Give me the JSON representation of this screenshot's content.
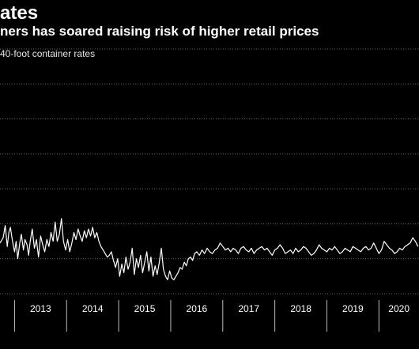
{
  "title": "ates",
  "subtitle": "ners has soared raising risk of higher retail prices",
  "caption": "40-foot container rates",
  "chart_data": {
    "type": "line",
    "title": "ates",
    "subtitle": "ners has soared raising risk of higher retail prices",
    "xlabel": "",
    "ylabel": "",
    "x_ticks": [
      "2013",
      "2014",
      "2015",
      "2016",
      "2017",
      "2018",
      "2019",
      "2020"
    ],
    "xlim": [
      2012.72,
      2020.77
    ],
    "ylim": [
      0,
      7
    ],
    "grid": "horizontal dotted",
    "legend": "none",
    "line_color": "#ffffff",
    "series": [
      {
        "x": [
          2012.72,
          2012.78,
          2012.82,
          2012.86,
          2012.89,
          2012.92,
          2012.96,
          2013.0,
          2013.03,
          2013.06,
          2013.1,
          2013.13,
          2013.17,
          2013.2,
          2013.24,
          2013.27,
          2013.3,
          2013.34,
          2013.38,
          2013.42,
          2013.46,
          2013.5,
          2013.54,
          2013.58,
          2013.62,
          2013.66,
          2013.7,
          2013.74,
          2013.78,
          2013.82,
          2013.86,
          2013.9,
          2013.94,
          2013.98,
          2014.02,
          2014.06,
          2014.1,
          2014.14,
          2014.18,
          2014.22,
          2014.26,
          2014.3,
          2014.34,
          2014.38,
          2014.42,
          2014.46,
          2014.5,
          2014.54,
          2014.58,
          2014.62,
          2014.66,
          2014.7,
          2014.74,
          2014.78,
          2014.82,
          2014.86,
          2014.9,
          2014.94,
          2014.98,
          2015.02,
          2015.06,
          2015.1,
          2015.14,
          2015.18,
          2015.22,
          2015.26,
          2015.3,
          2015.34,
          2015.38,
          2015.42,
          2015.46,
          2015.5,
          2015.54,
          2015.58,
          2015.62,
          2015.66,
          2015.7,
          2015.74,
          2015.78,
          2015.82,
          2015.86,
          2015.9,
          2015.94,
          2015.98,
          2016.02,
          2016.06,
          2016.1,
          2016.14,
          2016.18,
          2016.22,
          2016.26,
          2016.3,
          2016.34,
          2016.38,
          2016.42,
          2016.46,
          2016.5,
          2016.55,
          2016.6,
          2016.65,
          2016.7,
          2016.75,
          2016.8,
          2016.85,
          2016.9,
          2016.95,
          2017.0,
          2017.05,
          2017.1,
          2017.15,
          2017.2,
          2017.25,
          2017.3,
          2017.35,
          2017.4,
          2017.45,
          2017.5,
          2017.55,
          2017.6,
          2017.65,
          2017.7,
          2017.75,
          2017.8,
          2017.85,
          2017.9,
          2017.95,
          2018.0,
          2018.05,
          2018.1,
          2018.15,
          2018.2,
          2018.25,
          2018.3,
          2018.35,
          2018.4,
          2018.45,
          2018.5,
          2018.55,
          2018.6,
          2018.65,
          2018.7,
          2018.75,
          2018.8,
          2018.85,
          2018.9,
          2018.95,
          2019.0,
          2019.05,
          2019.1,
          2019.15,
          2019.2,
          2019.25,
          2019.3,
          2019.35,
          2019.4,
          2019.45,
          2019.5,
          2019.55,
          2019.6,
          2019.65,
          2019.7,
          2019.75,
          2019.8,
          2019.85,
          2019.9,
          2019.95,
          2020.0,
          2020.05,
          2020.1,
          2020.15,
          2020.2,
          2020.25,
          2020.3,
          2020.35,
          2020.4,
          2020.45,
          2020.5,
          2020.55,
          2020.6,
          2020.65,
          2020.7,
          2020.75
        ],
        "y": [
          1.45,
          1.6,
          1.95,
          1.35,
          1.75,
          1.9,
          1.5,
          1.2,
          1.5,
          1.0,
          1.45,
          1.7,
          1.25,
          1.55,
          1.4,
          1.1,
          1.5,
          1.85,
          1.3,
          1.55,
          1.05,
          1.65,
          1.4,
          1.2,
          1.55,
          1.35,
          1.75,
          1.5,
          2.05,
          1.5,
          1.7,
          2.15,
          1.5,
          1.25,
          1.55,
          1.2,
          1.45,
          1.75,
          1.55,
          1.85,
          1.65,
          1.5,
          1.8,
          1.6,
          1.85,
          1.65,
          1.9,
          1.6,
          1.75,
          1.5,
          1.35,
          1.25,
          1.15,
          1.05,
          1.1,
          1.2,
          0.95,
          0.75,
          1.0,
          0.5,
          0.85,
          0.6,
          1.05,
          0.7,
          0.9,
          1.3,
          0.55,
          1.0,
          0.75,
          1.1,
          0.6,
          0.9,
          1.2,
          0.65,
          1.05,
          0.5,
          0.8,
          0.55,
          0.9,
          1.3,
          0.7,
          0.5,
          0.4,
          0.65,
          0.45,
          0.4,
          0.5,
          0.6,
          0.75,
          0.7,
          0.9,
          0.8,
          1.0,
          1.05,
          0.95,
          1.15,
          1.2,
          1.1,
          1.25,
          1.15,
          1.3,
          1.2,
          1.15,
          1.25,
          1.3,
          1.45,
          1.35,
          1.25,
          1.3,
          1.2,
          1.3,
          1.25,
          1.15,
          1.3,
          1.35,
          1.25,
          1.2,
          1.3,
          1.15,
          1.25,
          1.3,
          1.35,
          1.25,
          1.3,
          1.2,
          1.1,
          1.25,
          1.3,
          1.4,
          1.3,
          1.15,
          1.2,
          1.25,
          1.15,
          1.3,
          1.2,
          1.25,
          1.35,
          1.3,
          1.2,
          1.1,
          1.15,
          1.25,
          1.4,
          1.3,
          1.25,
          1.2,
          1.3,
          1.25,
          1.35,
          1.25,
          1.15,
          1.2,
          1.3,
          1.25,
          1.2,
          1.35,
          1.3,
          1.25,
          1.2,
          1.3,
          1.35,
          1.25,
          1.3,
          1.45,
          1.3,
          1.15,
          1.25,
          1.5,
          1.4,
          1.3,
          1.25,
          1.15,
          1.2,
          1.3,
          1.25,
          1.35,
          1.4,
          1.45,
          1.6,
          1.5,
          1.35
        ]
      }
    ]
  }
}
